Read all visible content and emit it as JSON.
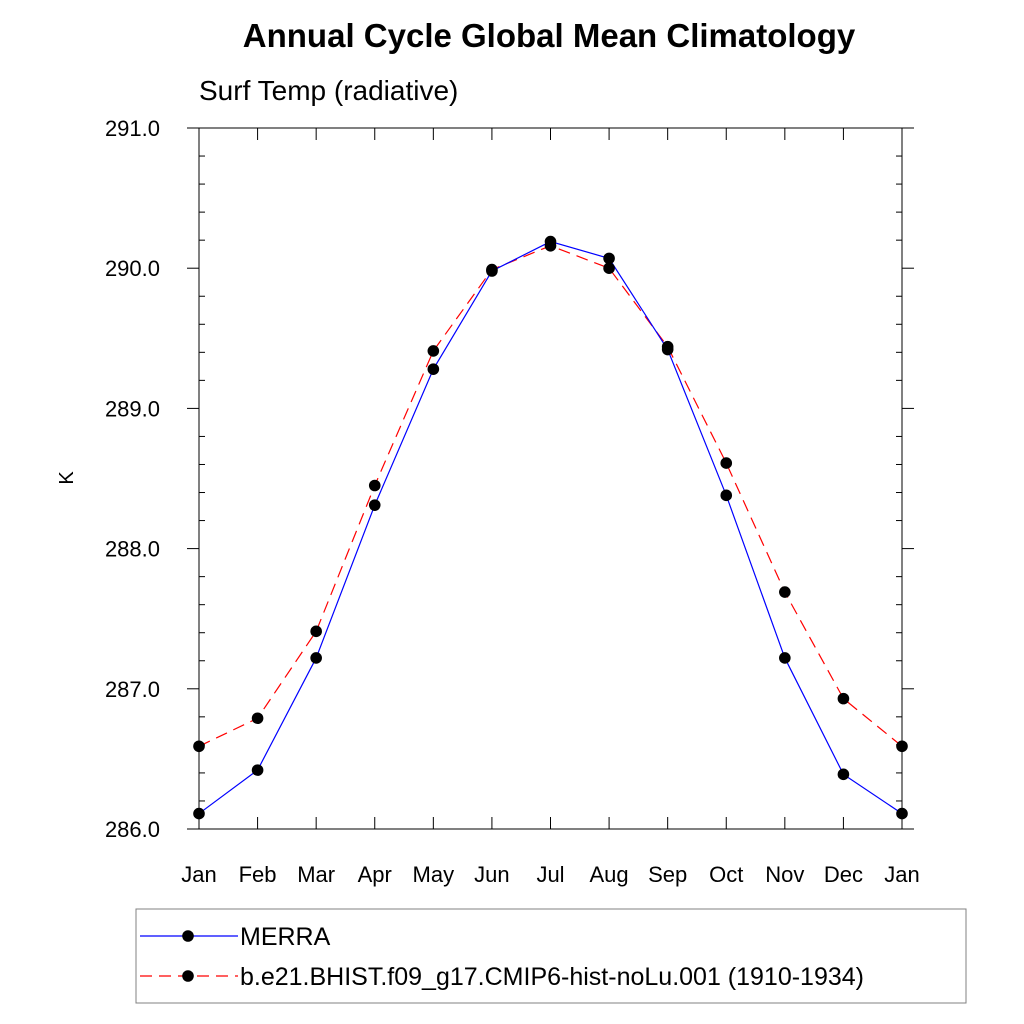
{
  "chart_data": {
    "type": "line",
    "title": "Annual Cycle Global Mean Climatology",
    "subtitle": "Surf Temp (radiative)",
    "xlabel": "",
    "ylabel": "K",
    "categories": [
      "Jan",
      "Feb",
      "Mar",
      "Apr",
      "May",
      "Jun",
      "Jul",
      "Aug",
      "Sep",
      "Oct",
      "Nov",
      "Dec",
      "Jan"
    ],
    "ylim": [
      286.0,
      291.0
    ],
    "yticks": [
      "286.0",
      "287.0",
      "288.0",
      "289.0",
      "290.0",
      "291.0"
    ],
    "grid": false,
    "legend_position": "bottom",
    "series": [
      {
        "name": "MERRA",
        "color": "#0000ff",
        "dash": "solid",
        "marker": "filled-circle",
        "values": [
          286.11,
          286.42,
          287.22,
          288.31,
          289.28,
          289.98,
          290.19,
          290.07,
          289.42,
          288.38,
          287.22,
          286.39,
          286.11
        ]
      },
      {
        "name": "b.e21.BHIST.f09_g17.CMIP6-hist-noLu.001 (1910-1934)",
        "color": "#ff0000",
        "dash": "dashed",
        "marker": "filled-circle",
        "values": [
          286.59,
          286.79,
          287.41,
          288.45,
          289.41,
          289.99,
          290.16,
          290.0,
          289.44,
          288.61,
          287.69,
          286.93,
          286.59
        ]
      }
    ]
  }
}
